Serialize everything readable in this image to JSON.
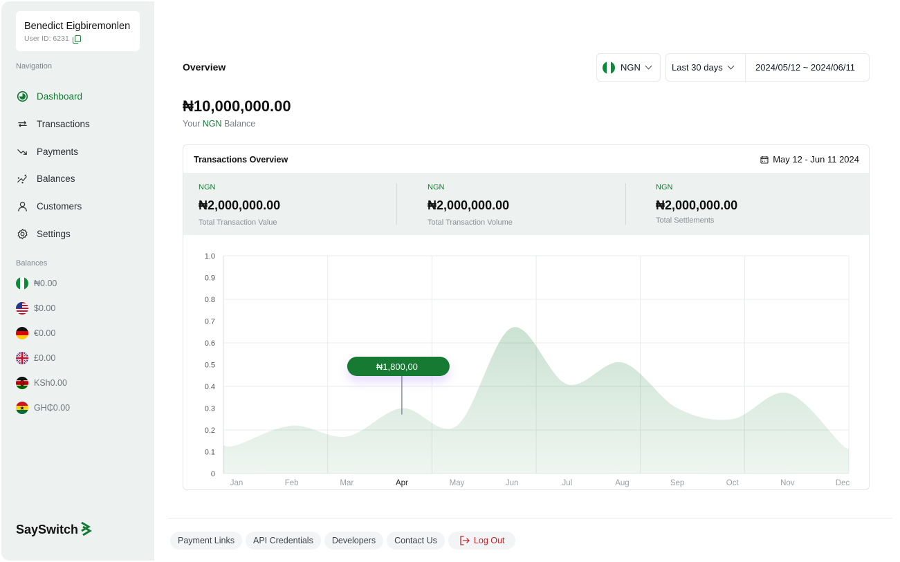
{
  "user": {
    "name": "Benedict Eigbiremonlen",
    "id_label": "User ID: 6231"
  },
  "navigation": {
    "label": "Navigation",
    "items": [
      {
        "label": "Dashboard",
        "icon": "dashboard-icon",
        "active": true
      },
      {
        "label": "Transactions",
        "icon": "transactions-icon"
      },
      {
        "label": "Payments",
        "icon": "payments-icon"
      },
      {
        "label": "Balances",
        "icon": "balances-icon"
      },
      {
        "label": "Customers",
        "icon": "customers-icon"
      },
      {
        "label": "Settings",
        "icon": "settings-icon"
      }
    ]
  },
  "balances": {
    "label": "Balances",
    "items": [
      {
        "value": "₦0.00",
        "flag": "nigeria-flag-icon"
      },
      {
        "value": "$0.00",
        "flag": "usa-flag-icon"
      },
      {
        "value": "€0.00",
        "flag": "germany-flag-icon"
      },
      {
        "value": "£0.00",
        "flag": "uk-flag-icon"
      },
      {
        "value": "KSh0.00",
        "flag": "kenya-flag-icon"
      },
      {
        "value": "GH₵0.00",
        "flag": "ghana-flag-icon"
      }
    ]
  },
  "brand": {
    "name": "SaySwitch"
  },
  "header": {
    "title": "Overview",
    "currency": "NGN",
    "range": "Last 30 days",
    "dates": "2024/05/12 ~ 2024/06/11"
  },
  "balance": {
    "value": "₦10,000,000.00",
    "label_prefix": "Your",
    "label_currency": "NGN",
    "label_suffix": "Balance"
  },
  "overview": {
    "title": "Transactions Overview",
    "date_range": "May 12 - Jun 11 2024",
    "stats": [
      {
        "currency": "NGN",
        "value": "₦2,000,000.00",
        "label": "Total Transaction Value"
      },
      {
        "currency": "NGN",
        "value": "₦2,000,000.00",
        "label": "Total Transaction Volume"
      },
      {
        "currency": "NGN",
        "value": "₦2,000,000.00",
        "label": "Total Settlements"
      }
    ]
  },
  "chart_data": {
    "type": "area",
    "x": [
      "Jan",
      "Feb",
      "Mar",
      "Apr",
      "May",
      "Jun",
      "Jul",
      "Aug",
      "Sep",
      "Oct",
      "Nov",
      "Dec"
    ],
    "y_ticks": [
      "0",
      "0.1",
      "0.2",
      "0.3",
      "0.4",
      "0.5",
      "0.6",
      "0.7",
      "0.8",
      "0.9",
      "1.0"
    ],
    "ylim": [
      0,
      1
    ],
    "series": [
      {
        "values": [
          0.13,
          0.22,
          0.17,
          0.3,
          0.22,
          0.67,
          0.41,
          0.51,
          0.3,
          0.25,
          0.37,
          0.13
        ]
      }
    ],
    "highlight": {
      "index": 3,
      "label": "₦1,800,00"
    },
    "grid": true,
    "color": "#137A33"
  },
  "footer": {
    "links": [
      "Payment Links",
      "API Credentials",
      "Developers",
      "Contact Us"
    ],
    "logout": "Log Out"
  }
}
